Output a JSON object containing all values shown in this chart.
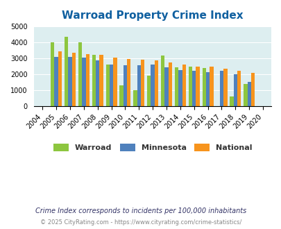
{
  "title": "Warroad Property Crime Index",
  "years": [
    2004,
    2005,
    2006,
    2007,
    2008,
    2009,
    2010,
    2011,
    2012,
    2013,
    2014,
    2015,
    2016,
    2017,
    2018,
    2019,
    2020
  ],
  "warroad": [
    null,
    4000,
    4350,
    4020,
    3220,
    2620,
    1310,
    1020,
    1930,
    3190,
    2430,
    2470,
    2390,
    null,
    620,
    1390,
    null
  ],
  "minnesota": [
    null,
    3080,
    3080,
    3030,
    2870,
    2620,
    2580,
    2560,
    2600,
    2430,
    2280,
    2220,
    2130,
    2210,
    2020,
    1520,
    null
  ],
  "national": [
    null,
    3450,
    3340,
    3250,
    3210,
    3040,
    2960,
    2930,
    2880,
    2750,
    2620,
    2500,
    2460,
    2360,
    2200,
    2100,
    null
  ],
  "warroad_color": "#8dc63f",
  "minnesota_color": "#4f81bd",
  "national_color": "#f7941d",
  "bg_color": "#ddeef0",
  "ylim": [
    0,
    5000
  ],
  "yticks": [
    0,
    1000,
    2000,
    3000,
    4000,
    5000
  ],
  "footnote1": "Crime Index corresponds to incidents per 100,000 inhabitants",
  "footnote2": "© 2025 CityRating.com - https://www.cityrating.com/crime-statistics/",
  "legend_labels": [
    "Warroad",
    "Minnesota",
    "National"
  ]
}
